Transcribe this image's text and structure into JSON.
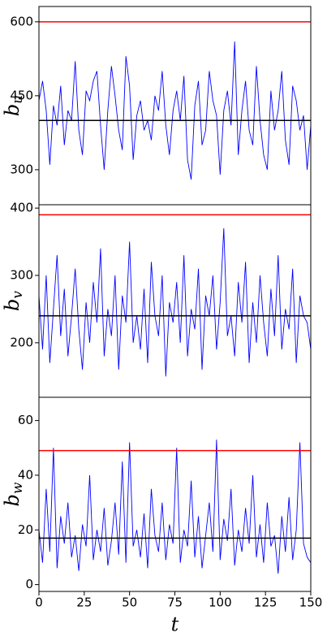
{
  "chart_data": [
    {
      "type": "line",
      "ylabel": "b",
      "ylabel_subscript": "u",
      "x": [
        0,
        2,
        4,
        6,
        8,
        10,
        12,
        14,
        16,
        18,
        20,
        22,
        24,
        26,
        28,
        30,
        32,
        34,
        36,
        38,
        40,
        42,
        44,
        46,
        48,
        50,
        52,
        54,
        56,
        58,
        60,
        62,
        64,
        66,
        68,
        70,
        72,
        74,
        76,
        78,
        80,
        82,
        84,
        86,
        88,
        90,
        92,
        94,
        96,
        98,
        100,
        102,
        104,
        106,
        108,
        110,
        112,
        114,
        116,
        118,
        120,
        122,
        124,
        126,
        128,
        130,
        132,
        134,
        136,
        138,
        140,
        142,
        144,
        146,
        148,
        150
      ],
      "xlim": [
        0,
        150
      ],
      "ylim": [
        229,
        631
      ],
      "yticks": [
        300,
        450,
        600
      ],
      "series": [
        {
          "color": "#0000ff",
          "values": [
            440,
            480,
            420,
            310,
            430,
            390,
            470,
            350,
            420,
            400,
            520,
            380,
            330,
            460,
            440,
            480,
            500,
            390,
            300,
            420,
            510,
            450,
            380,
            340,
            530,
            470,
            320,
            410,
            440,
            380,
            400,
            360,
            450,
            420,
            500,
            390,
            330,
            420,
            460,
            400,
            490,
            320,
            280,
            430,
            480,
            350,
            380,
            500,
            440,
            410,
            290,
            420,
            460,
            390,
            560,
            330,
            420,
            480,
            380,
            350,
            510,
            400,
            330,
            300,
            460,
            380,
            420,
            500,
            360,
            310,
            470,
            440,
            380,
            410,
            300,
            390
          ]
        }
      ],
      "hlines": [
        {
          "value": 600,
          "color": "#ff0000"
        },
        {
          "value": 400,
          "color": "#000000"
        }
      ]
    },
    {
      "type": "line",
      "ylabel": "b",
      "ylabel_subscript": "v",
      "x": [
        0,
        2,
        4,
        6,
        8,
        10,
        12,
        14,
        16,
        18,
        20,
        22,
        24,
        26,
        28,
        30,
        32,
        34,
        36,
        38,
        40,
        42,
        44,
        46,
        48,
        50,
        52,
        54,
        56,
        58,
        60,
        62,
        64,
        66,
        68,
        70,
        72,
        74,
        76,
        78,
        80,
        82,
        84,
        86,
        88,
        90,
        92,
        94,
        96,
        98,
        100,
        102,
        104,
        106,
        108,
        110,
        112,
        114,
        116,
        118,
        120,
        122,
        124,
        126,
        128,
        130,
        132,
        134,
        136,
        138,
        140,
        142,
        144,
        146,
        148,
        150
      ],
      "xlim": [
        0,
        150
      ],
      "ylim": [
        119,
        405
      ],
      "yticks": [
        200,
        300,
        400
      ],
      "series": [
        {
          "color": "#0000ff",
          "values": [
            270,
            190,
            300,
            170,
            250,
            330,
            210,
            280,
            180,
            240,
            310,
            220,
            160,
            260,
            200,
            290,
            230,
            340,
            180,
            250,
            210,
            300,
            160,
            270,
            230,
            350,
            200,
            240,
            190,
            280,
            170,
            320,
            240,
            210,
            300,
            150,
            260,
            230,
            290,
            200,
            330,
            180,
            250,
            220,
            310,
            160,
            270,
            240,
            300,
            190,
            260,
            370,
            210,
            240,
            180,
            290,
            230,
            320,
            170,
            260,
            200,
            300,
            230,
            180,
            280,
            210,
            330,
            190,
            250,
            220,
            310,
            170,
            270,
            240,
            230,
            190
          ]
        }
      ],
      "hlines": [
        {
          "value": 390,
          "color": "#ff0000"
        },
        {
          "value": 240,
          "color": "#000000"
        }
      ]
    },
    {
      "type": "line",
      "ylabel": "b",
      "ylabel_subscript": "w",
      "xlabel": "t",
      "x": [
        0,
        2,
        4,
        6,
        8,
        10,
        12,
        14,
        16,
        18,
        20,
        22,
        24,
        26,
        28,
        30,
        32,
        34,
        36,
        38,
        40,
        42,
        44,
        46,
        48,
        50,
        52,
        54,
        56,
        58,
        60,
        62,
        64,
        66,
        68,
        70,
        72,
        74,
        76,
        78,
        80,
        82,
        84,
        86,
        88,
        90,
        92,
        94,
        96,
        98,
        100,
        102,
        104,
        106,
        108,
        110,
        112,
        114,
        116,
        118,
        120,
        122,
        124,
        126,
        128,
        130,
        132,
        134,
        136,
        138,
        140,
        142,
        144,
        146,
        148,
        150
      ],
      "xlim": [
        0,
        150
      ],
      "xticks": [
        0,
        25,
        50,
        75,
        100,
        125,
        150
      ],
      "ylim": [
        -2.5,
        68.5
      ],
      "yticks": [
        0,
        20,
        40,
        60
      ],
      "series": [
        {
          "color": "#0000ff",
          "values": [
            20,
            8,
            35,
            12,
            50,
            6,
            25,
            15,
            30,
            10,
            18,
            5,
            22,
            14,
            40,
            9,
            20,
            12,
            28,
            7,
            16,
            30,
            11,
            45,
            8,
            52,
            14,
            20,
            10,
            26,
            6,
            35,
            18,
            12,
            30,
            9,
            22,
            15,
            50,
            8,
            20,
            14,
            38,
            10,
            25,
            6,
            18,
            30,
            12,
            53,
            9,
            24,
            16,
            35,
            7,
            20,
            12,
            28,
            15,
            40,
            10,
            22,
            8,
            30,
            14,
            18,
            4,
            25,
            12,
            32,
            9,
            20,
            52,
            15,
            10,
            8
          ]
        }
      ],
      "hlines": [
        {
          "value": 49,
          "color": "#ff0000"
        },
        {
          "value": 17,
          "color": "#000000"
        }
      ]
    }
  ]
}
